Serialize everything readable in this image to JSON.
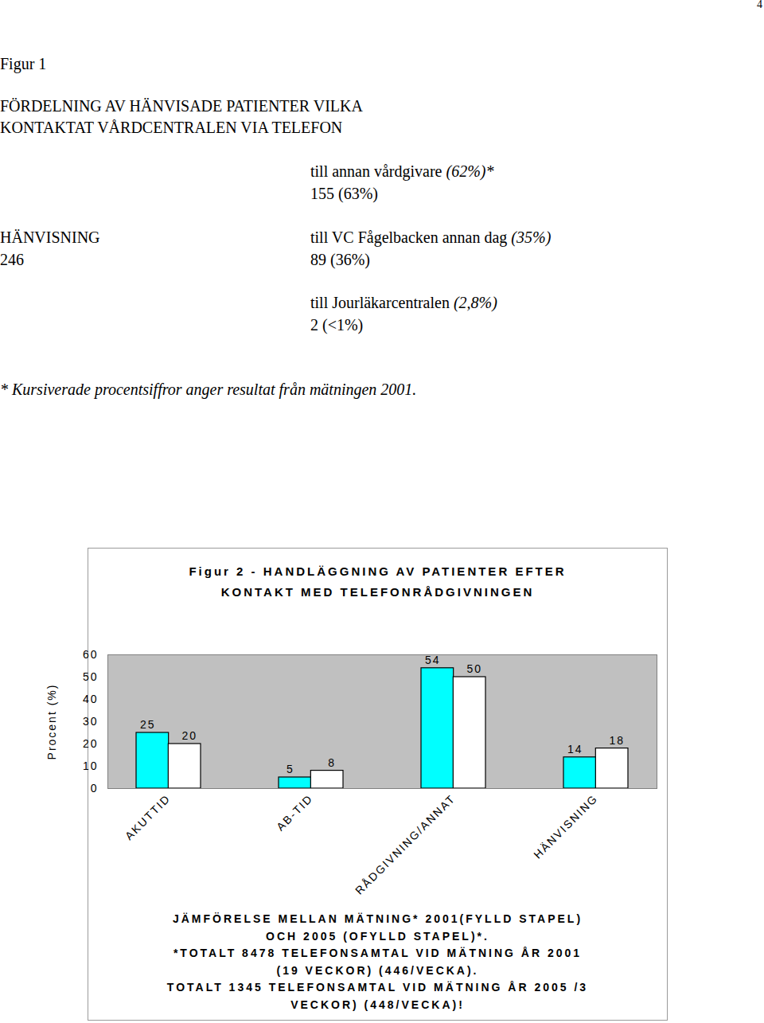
{
  "page_number": "4",
  "figure1": {
    "label": "Figur 1",
    "title": [
      "FÖRDELNING AV HÄNVISADE PATIENTER VILKA",
      "KONTAKTAT VÅRDCENTRALEN VIA TELEFON"
    ],
    "root": {
      "label": "HÄNVISNING",
      "count": "246"
    },
    "branches": [
      {
        "label": "till annan vårdgivare",
        "pct_2001": "(62%)*",
        "count": "155 (63%)"
      },
      {
        "label": "till VC Fågelbacken annan dag",
        "pct_2001": "(35%)",
        "count": "89 (36%)"
      },
      {
        "label": "till Jourläkarcentralen",
        "pct_2001": "(2,8%)",
        "count": "2 (<1%)"
      }
    ],
    "footnote": "* Kursiverade procentsiffror anger resultat från mätningen 2001."
  },
  "chart_data": {
    "type": "bar",
    "title": [
      "Figur 2 - HANDLÄGGNING AV PATIENTER EFTER",
      "KONTAKT MED TELEFONRÅDGIVNINGEN"
    ],
    "y_label": "Procent (%)",
    "categories": [
      "AKUTTID",
      "AB-TID",
      "RÅDGIVNING/ANNAT",
      "HÄNVISNING"
    ],
    "series": [
      {
        "color": "#00ffff",
        "values": [
          25,
          5,
          54,
          14
        ]
      },
      {
        "color": "#ffffff",
        "values": [
          20,
          8,
          50,
          18
        ]
      }
    ],
    "ylim": [
      0,
      60
    ],
    "yticks": [
      0,
      10,
      20,
      30,
      40,
      50,
      60
    ],
    "grid": false,
    "data_labels": true,
    "caption": [
      "JÄMFÖRELSE MELLAN MÄTNING* 2001(FYLLD STAPEL)",
      "OCH 2005 (OFYLLD STAPEL)*.",
      "*TOTALT 8478 TELEFONSAMTAL VID MÄTNING ÅR 2001",
      "(19 VECKOR) (446/VECKA).",
      "TOTALT 1345 TELEFONSAMTAL VID MÄTNING ÅR 2005 /3",
      "VECKOR) (448/VECKA)!"
    ]
  }
}
